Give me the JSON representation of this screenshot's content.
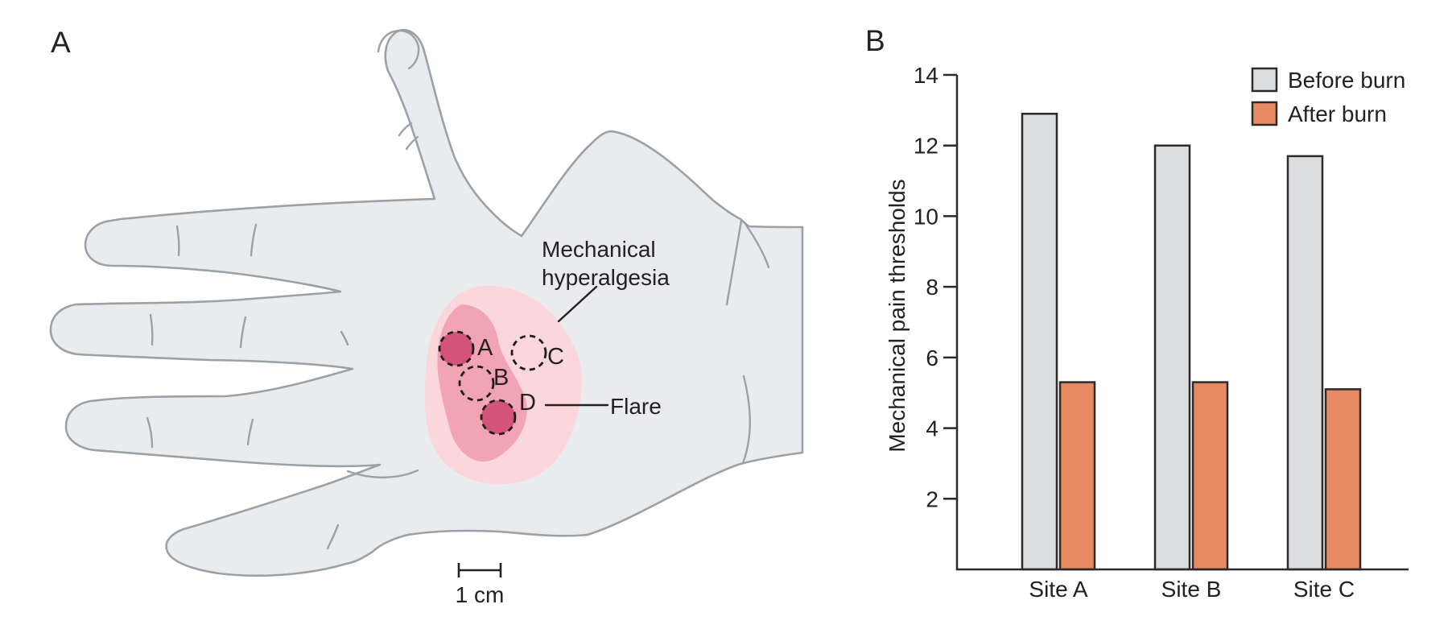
{
  "panel_a": {
    "label": "A",
    "hyperalgesia_label": [
      "Mechanical",
      "hyperalgesia"
    ],
    "flare_label": "Flare",
    "sites": [
      "A",
      "B",
      "C",
      "D"
    ],
    "scale_bar_label": "1 cm",
    "colors": {
      "hand_fill": "#e9ebee",
      "hand_outline": "#9aa1a7",
      "hyperalgesia_fill": "#fbd6da",
      "flare_fill": "#f1a4b4",
      "injection_site_fill": "#d4537a",
      "dashed_circle_stroke": "#1d1d1b"
    }
  },
  "panel_b": {
    "label": "B"
  },
  "chart_data": {
    "type": "bar",
    "title": "",
    "categories": [
      "Site A",
      "Site B",
      "Site C"
    ],
    "series": [
      {
        "name": "Before burn",
        "color": "#dadcde",
        "values": [
          12.9,
          12.0,
          11.7
        ]
      },
      {
        "name": "After burn",
        "color": "#e58a62",
        "values": [
          5.3,
          5.3,
          5.1
        ]
      }
    ],
    "xlabel": "",
    "ylabel": "Mechanical pain thresholds",
    "ylim": [
      0,
      14
    ],
    "yticks": [
      2,
      4,
      6,
      8,
      10,
      12,
      14
    ],
    "grid": false,
    "legend_position": "top-right",
    "axis_color": "#2d2a2b",
    "bar_outline": "#2d2a2b"
  }
}
